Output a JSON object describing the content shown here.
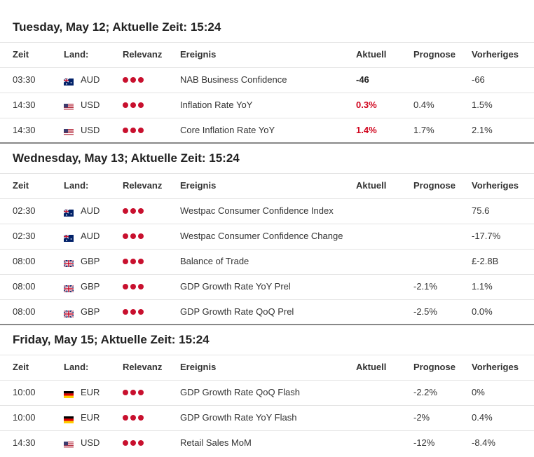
{
  "sections": [
    {
      "title": "Tuesday, May 12; Aktuelle Zeit: 15:24",
      "columns": [
        "Zeit",
        "Land:",
        "Relevanz",
        "Ereignis",
        "Aktuell",
        "Prognose",
        "Vorheriges"
      ],
      "rows": [
        {
          "time": "03:30",
          "country": "AUD",
          "event": "NAB Business Confidence",
          "actual": "-46",
          "actual_color": "#222222",
          "previous": "-66"
        },
        {
          "time": "14:30",
          "country": "USD",
          "event": "Inflation Rate YoY",
          "actual": "0.3%",
          "actual_color": "#d0021b",
          "forecast": "0.4%",
          "previous": "1.5%"
        },
        {
          "time": "14:30",
          "country": "USD",
          "event": "Core Inflation Rate YoY",
          "actual": "1.4%",
          "actual_color": "#d0021b",
          "forecast": "1.7%",
          "previous": "2.1%"
        }
      ]
    },
    {
      "title": "Wednesday, May 13; Aktuelle Zeit: 15:24",
      "columns": [
        "Zeit",
        "Land:",
        "Relevanz",
        "Ereignis",
        "Aktuell",
        "Prognose",
        "Vorheriges"
      ],
      "rows": [
        {
          "time": "02:30",
          "country": "AUD",
          "event": "Westpac Consumer Confidence Index",
          "previous": "75.6"
        },
        {
          "time": "02:30",
          "country": "AUD",
          "event": "Westpac Consumer Confidence Change",
          "previous": "-17.7%"
        },
        {
          "time": "08:00",
          "country": "GBP",
          "event": "Balance of Trade",
          "previous": "£-2.8B"
        },
        {
          "time": "08:00",
          "country": "GBP",
          "event": "GDP Growth Rate YoY Prel",
          "forecast": "-2.1%",
          "previous": "1.1%"
        },
        {
          "time": "08:00",
          "country": "GBP",
          "event": "GDP Growth Rate QoQ Prel",
          "forecast": "-2.5%",
          "previous": "0.0%"
        }
      ]
    },
    {
      "title": "Friday, May 15; Aktuelle Zeit: 15:24",
      "columns": [
        "Zeit",
        "Land:",
        "Relevanz",
        "Ereignis",
        "Aktuell",
        "Prognose",
        "Vorheriges"
      ],
      "rows": [
        {
          "time": "10:00",
          "country": "EUR",
          "event": "GDP Growth Rate QoQ Flash",
          "forecast": "-2.2%",
          "previous": "0%"
        },
        {
          "time": "10:00",
          "country": "EUR",
          "event": "GDP Growth Rate YoY Flash",
          "forecast": "-2%",
          "previous": "0.4%"
        },
        {
          "time": "14:30",
          "country": "USD",
          "event": "Retail Sales MoM",
          "forecast": "-12%",
          "previous": "-8.4%"
        }
      ]
    }
  ]
}
